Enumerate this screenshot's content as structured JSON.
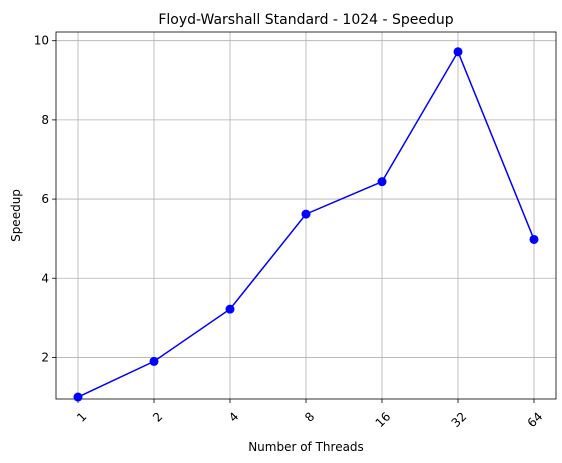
{
  "chart_data": {
    "type": "line",
    "title": "Floyd-Warshall Standard - 1024 - Speedup",
    "xlabel": "Number of Threads",
    "ylabel": "Speedup",
    "categories": [
      "1",
      "2",
      "4",
      "8",
      "16",
      "32",
      "64"
    ],
    "series": [
      {
        "values": [
          1.0,
          1.9,
          3.22,
          5.62,
          6.44,
          9.72,
          4.98
        ],
        "color": "#0000ff",
        "marker": "circle"
      }
    ],
    "ylim": [
      0.95,
      10.22
    ],
    "yticks": [
      2,
      4,
      6,
      8,
      10
    ],
    "grid": true,
    "x_tick_rotation": 45
  }
}
